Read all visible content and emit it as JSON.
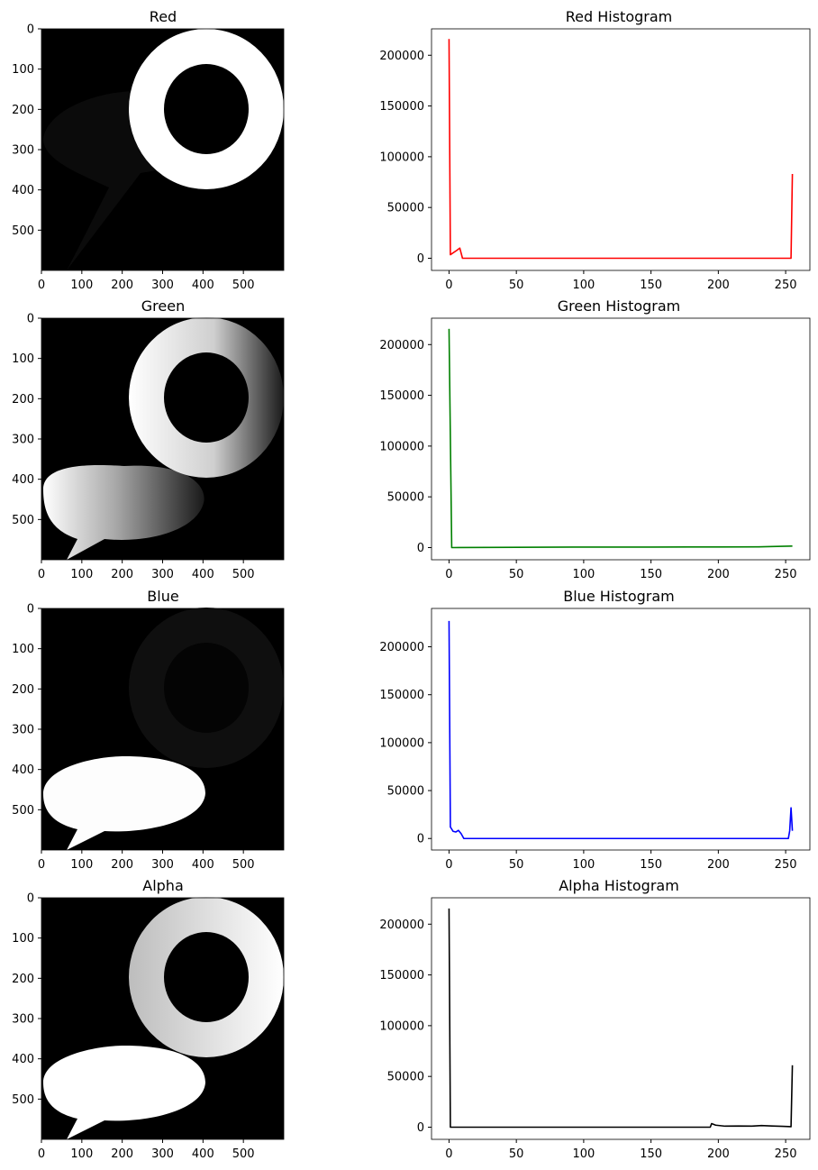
{
  "chart_data": [
    {
      "type": "image",
      "title": "Red",
      "xticks": [
        0,
        100,
        200,
        300,
        400,
        500
      ],
      "yticks": [
        0,
        100,
        200,
        300,
        400,
        500
      ],
      "xlim": [
        0,
        600
      ],
      "ylim": [
        0,
        600
      ]
    },
    {
      "type": "line",
      "title": "Red Histogram",
      "color": "#ff0000",
      "xlim": [
        -13,
        268
      ],
      "ylim": [
        -12000,
        226000
      ],
      "xticks": [
        0,
        50,
        100,
        150,
        200,
        250
      ],
      "yticks": [
        0,
        50000,
        100000,
        150000,
        200000
      ],
      "points": [
        [
          0,
          216000
        ],
        [
          1,
          3500
        ],
        [
          6,
          8000
        ],
        [
          8,
          10000
        ],
        [
          10,
          0
        ],
        [
          253,
          0
        ],
        [
          254,
          0
        ],
        [
          255,
          83000
        ]
      ]
    },
    {
      "type": "image",
      "title": "Green",
      "xticks": [
        0,
        100,
        200,
        300,
        400,
        500
      ],
      "yticks": [
        0,
        100,
        200,
        300,
        400,
        500
      ],
      "xlim": [
        0,
        600
      ],
      "ylim": [
        0,
        600
      ]
    },
    {
      "type": "line",
      "title": "Green Histogram",
      "color": "#008000",
      "xlim": [
        -13,
        268
      ],
      "ylim": [
        -12000,
        226000
      ],
      "xticks": [
        0,
        50,
        100,
        150,
        200,
        250
      ],
      "yticks": [
        0,
        50000,
        100000,
        150000,
        200000
      ],
      "points": [
        [
          0,
          215500
        ],
        [
          2,
          0
        ],
        [
          50,
          300
        ],
        [
          100,
          500
        ],
        [
          150,
          500
        ],
        [
          200,
          600
        ],
        [
          230,
          700
        ],
        [
          240,
          1000
        ],
        [
          255,
          1500
        ]
      ]
    },
    {
      "type": "image",
      "title": "Blue",
      "xticks": [
        0,
        100,
        200,
        300,
        400,
        500
      ],
      "yticks": [
        0,
        100,
        200,
        300,
        400,
        500
      ],
      "xlim": [
        0,
        600
      ],
      "ylim": [
        0,
        600
      ]
    },
    {
      "type": "line",
      "title": "Blue Histogram",
      "color": "#0000ff",
      "xlim": [
        -13,
        268
      ],
      "ylim": [
        -12000,
        240000
      ],
      "xticks": [
        0,
        50,
        100,
        150,
        200,
        250
      ],
      "yticks": [
        0,
        50000,
        100000,
        150000,
        200000
      ],
      "points": [
        [
          0,
          227000
        ],
        [
          1,
          12000
        ],
        [
          3,
          7500
        ],
        [
          5,
          6800
        ],
        [
          7,
          8500
        ],
        [
          9,
          5000
        ],
        [
          11,
          0
        ],
        [
          250,
          0
        ],
        [
          252,
          0
        ],
        [
          253,
          8000
        ],
        [
          254,
          32000
        ],
        [
          255,
          8000
        ]
      ]
    },
    {
      "type": "image",
      "title": "Alpha",
      "xticks": [
        0,
        100,
        200,
        300,
        400,
        500
      ],
      "yticks": [
        0,
        100,
        200,
        300,
        400,
        500
      ],
      "xlim": [
        0,
        600
      ],
      "ylim": [
        0,
        600
      ]
    },
    {
      "type": "line",
      "title": "Alpha Histogram",
      "color": "#000000",
      "xlim": [
        -13,
        268
      ],
      "ylim": [
        -12000,
        226000
      ],
      "xticks": [
        0,
        50,
        100,
        150,
        200,
        250
      ],
      "yticks": [
        0,
        50000,
        100000,
        150000,
        200000
      ],
      "points": [
        [
          0,
          215500
        ],
        [
          1,
          0
        ],
        [
          150,
          0
        ],
        [
          194,
          0
        ],
        [
          195,
          3500
        ],
        [
          198,
          2000
        ],
        [
          205,
          1000
        ],
        [
          215,
          1200
        ],
        [
          225,
          1000
        ],
        [
          232,
          1600
        ],
        [
          240,
          1200
        ],
        [
          248,
          800
        ],
        [
          254,
          500
        ],
        [
          255,
          61000
        ]
      ]
    }
  ]
}
